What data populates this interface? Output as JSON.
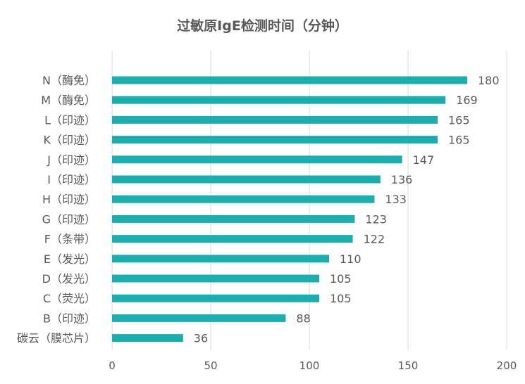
{
  "chart_data": {
    "type": "bar",
    "orientation": "horizontal",
    "title": "过敏原IgE检测时间（分钟）",
    "categories": [
      "N（酶免）",
      "M（酶免）",
      "L（印迹）",
      "K（印迹）",
      "J（印迹）",
      "I（印迹）",
      "H（印迹）",
      "G（印迹）",
      "F（条带）",
      "E（发光）",
      "D（发光）",
      "C（荧光）",
      "B（印迹）",
      "碳云（膜芯片）"
    ],
    "values": [
      180,
      169,
      165,
      165,
      147,
      136,
      133,
      123,
      122,
      110,
      105,
      105,
      88,
      36
    ],
    "xlim": [
      0,
      200
    ],
    "xticks": [
      0,
      50,
      100,
      150,
      200
    ],
    "xlabel": "",
    "ylabel": "",
    "grid": true,
    "legend": "none",
    "bar_color": "#1aafaf"
  }
}
